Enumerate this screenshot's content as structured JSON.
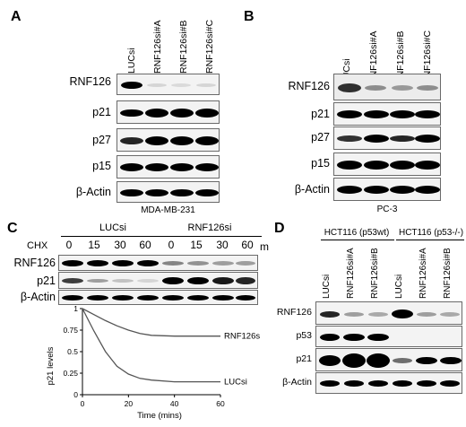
{
  "panels": {
    "A": {
      "label": "A",
      "lanes": [
        "LUCsi",
        "RNF126si#A",
        "RNF126si#B",
        "RNF126si#C"
      ],
      "rows": [
        "RNF126",
        "p21",
        "p27",
        "p15",
        "β-Actin"
      ],
      "cell_line": "MDA-MB-231"
    },
    "B": {
      "label": "B",
      "lanes": [
        "LUCsi",
        "RNF126si#A",
        "RNF126si#B",
        "RNF126si#C"
      ],
      "rows": [
        "RNF126",
        "p21",
        "p27",
        "p15",
        "β-Actin"
      ],
      "cell_line": "PC-3"
    },
    "C": {
      "label": "C",
      "group1": "LUCsi",
      "group2": "RNF126si",
      "treatment": "CHX",
      "timepoints": [
        "0",
        "15",
        "30",
        "60",
        "0",
        "15",
        "30",
        "60"
      ],
      "unit": "m",
      "rows": [
        "RNF126",
        "p21",
        "β-Actin"
      ]
    },
    "D": {
      "label": "D",
      "group1": "HCT116 (p53wt)",
      "group2": "HCT116 (p53-/-)",
      "lanes": [
        "LUCsi",
        "RNF126si#A",
        "RNF126si#B",
        "LUCsi",
        "RNF126si#A",
        "RNF126si#B"
      ],
      "rows": [
        "RNF126",
        "p53",
        "p21",
        "β-Actin"
      ]
    }
  },
  "chart_data": {
    "type": "line",
    "title": "",
    "xlabel": "Time (mins)",
    "ylabel": "p21 levels",
    "xlim": [
      0,
      60
    ],
    "ylim": [
      0,
      1
    ],
    "xticks": [
      "0",
      "20",
      "40",
      "60"
    ],
    "yticks": [
      "0",
      "0.25",
      "0.5",
      "0.75",
      "1"
    ],
    "series": [
      {
        "name": "RNF126si",
        "x": [
          0,
          5,
          10,
          15,
          20,
          25,
          30,
          40,
          50,
          60
        ],
        "y": [
          1,
          0.93,
          0.86,
          0.8,
          0.75,
          0.71,
          0.69,
          0.68,
          0.68,
          0.68
        ]
      },
      {
        "name": "LUCsi",
        "x": [
          0,
          5,
          10,
          15,
          20,
          25,
          30,
          40,
          50,
          60
        ],
        "y": [
          1,
          0.74,
          0.5,
          0.33,
          0.24,
          0.19,
          0.17,
          0.15,
          0.15,
          0.15
        ]
      }
    ]
  }
}
